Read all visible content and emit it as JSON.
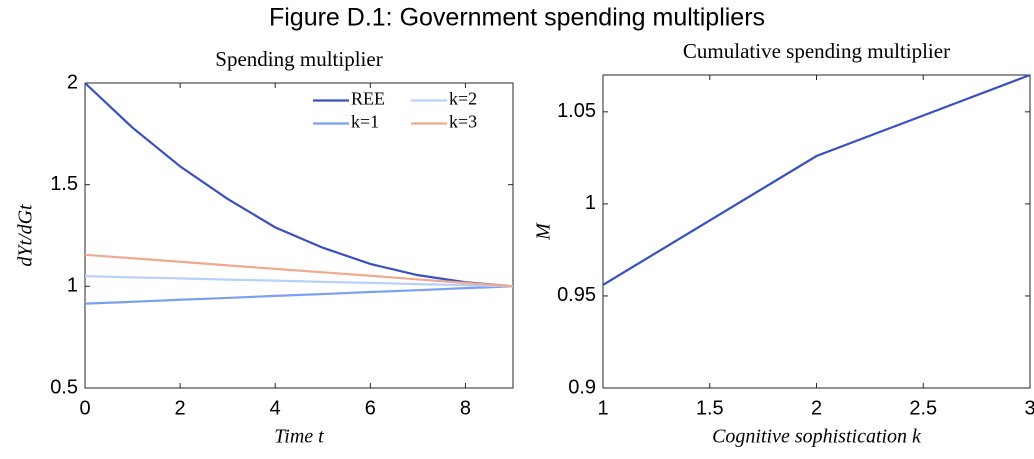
{
  "title": "Figure D.1: Government spending multipliers",
  "chart_data": [
    {
      "type": "line",
      "title": "Spending multiplier",
      "x_label": "Time t",
      "y_label": "dYt/dGt",
      "x": [
        0,
        1,
        2,
        3,
        4,
        5,
        6,
        7,
        8,
        9
      ],
      "series": [
        {
          "name": "REE",
          "color": "#3a4fc0",
          "values": [
            2,
            1.78,
            1.59,
            1.43,
            1.29,
            1.19,
            1.11,
            1.055,
            1.02,
            1.0
          ]
        },
        {
          "name": "k=1",
          "color": "#7b9ff2",
          "values": [
            0.915,
            0.924,
            0.934,
            0.943,
            0.953,
            0.962,
            0.972,
            0.981,
            0.991,
            1.0
          ]
        },
        {
          "name": "k=2",
          "color": "#b9d0f9",
          "values": [
            1.05,
            1.044,
            1.039,
            1.033,
            1.028,
            1.022,
            1.017,
            1.011,
            1.006,
            1.0
          ]
        },
        {
          "name": "k=3",
          "color": "#f0a98e",
          "values": [
            1.155,
            1.138,
            1.121,
            1.103,
            1.086,
            1.069,
            1.052,
            1.034,
            1.017,
            1.0
          ]
        }
      ],
      "xlim": [
        0,
        9
      ],
      "xticks": [
        0,
        2,
        4,
        6,
        8
      ],
      "ylim": [
        0.5,
        2
      ],
      "yticks": [
        0.5,
        1,
        1.5,
        2
      ],
      "legend": "upper right",
      "grid": false
    },
    {
      "type": "line",
      "title": "Cumulative spending multiplier",
      "x_label": "Cognitive sophistication k",
      "y_label": "M",
      "x": [
        1,
        2,
        3
      ],
      "values": [
        0.956,
        1.026,
        1.07
      ],
      "color": "#3a4fc0",
      "xlim": [
        1,
        3
      ],
      "xticks": [
        1,
        1.5,
        2,
        2.5,
        3
      ],
      "ylim": [
        0.9,
        1.07
      ],
      "yticks": [
        0.9,
        0.95,
        1,
        1.05
      ],
      "grid": false
    }
  ]
}
